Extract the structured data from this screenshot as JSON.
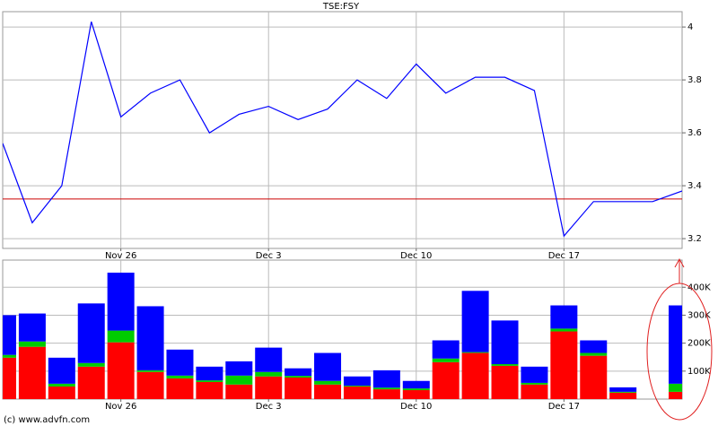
{
  "chart_data": [
    {
      "type": "line",
      "title": "TSE:FSY",
      "categories": [
        null,
        null,
        null,
        null,
        "Nov 26",
        null,
        null,
        null,
        null,
        "Dec 3",
        null,
        null,
        null,
        null,
        "Dec 10",
        null,
        null,
        null,
        null,
        "Dec 17",
        null,
        null,
        null,
        null
      ],
      "values": [
        3.56,
        3.26,
        3.4,
        4.02,
        3.66,
        3.75,
        3.8,
        3.6,
        3.67,
        3.7,
        3.65,
        3.69,
        3.8,
        3.73,
        3.86,
        3.75,
        3.81,
        3.81,
        3.76,
        3.21,
        3.34,
        3.34,
        3.34,
        3.38
      ],
      "color": "#0000ff",
      "reference_line": 3.35,
      "reference_color": "#cc0000",
      "ylim": [
        3.163,
        4.058
      ],
      "yticks": [
        3.2,
        3.4,
        3.6,
        3.8,
        4
      ],
      "grid": true
    },
    {
      "type": "stacked_bar",
      "categories": [
        null,
        null,
        null,
        null,
        "Nov 26",
        null,
        null,
        null,
        null,
        "Dec 3",
        null,
        null,
        null,
        null,
        "Dec 10",
        null,
        null,
        null,
        null,
        "Dec 17",
        null,
        null,
        null,
        null
      ],
      "series": [
        {
          "color": "#ff0000",
          "values": [
            148000,
            187000,
            45000,
            116000,
            203000,
            97000,
            74000,
            61000,
            52000,
            81000,
            77000,
            52000,
            45000,
            35000,
            32000,
            132000,
            165000,
            119000,
            52000,
            242000,
            155000,
            23000,
            0,
            26000
          ]
        },
        {
          "color": "#00cc00",
          "values": [
            10000,
            19000,
            10000,
            13000,
            42000,
            6000,
            10000,
            6000,
            32000,
            16000,
            6000,
            13000,
            3000,
            6000,
            6000,
            13000,
            3000,
            6000,
            6000,
            10000,
            10000,
            3000,
            0,
            29000
          ]
        },
        {
          "color": "#0000ff",
          "values": [
            142000,
            100000,
            93000,
            213000,
            207000,
            229000,
            93000,
            49000,
            51000,
            87000,
            27000,
            100000,
            33000,
            62000,
            27000,
            65000,
            219000,
            156000,
            58000,
            83000,
            45000,
            16000,
            0,
            280000
          ]
        }
      ],
      "ylim": [
        0,
        497000
      ],
      "yticks": [
        {
          "value": 100000,
          "label": "100K"
        },
        {
          "value": 200000,
          "label": "200K"
        },
        {
          "value": 300000,
          "label": "300K"
        },
        {
          "value": 400000,
          "label": "400K"
        }
      ],
      "grid": true
    }
  ],
  "credit": "(c) www.advfn.com"
}
